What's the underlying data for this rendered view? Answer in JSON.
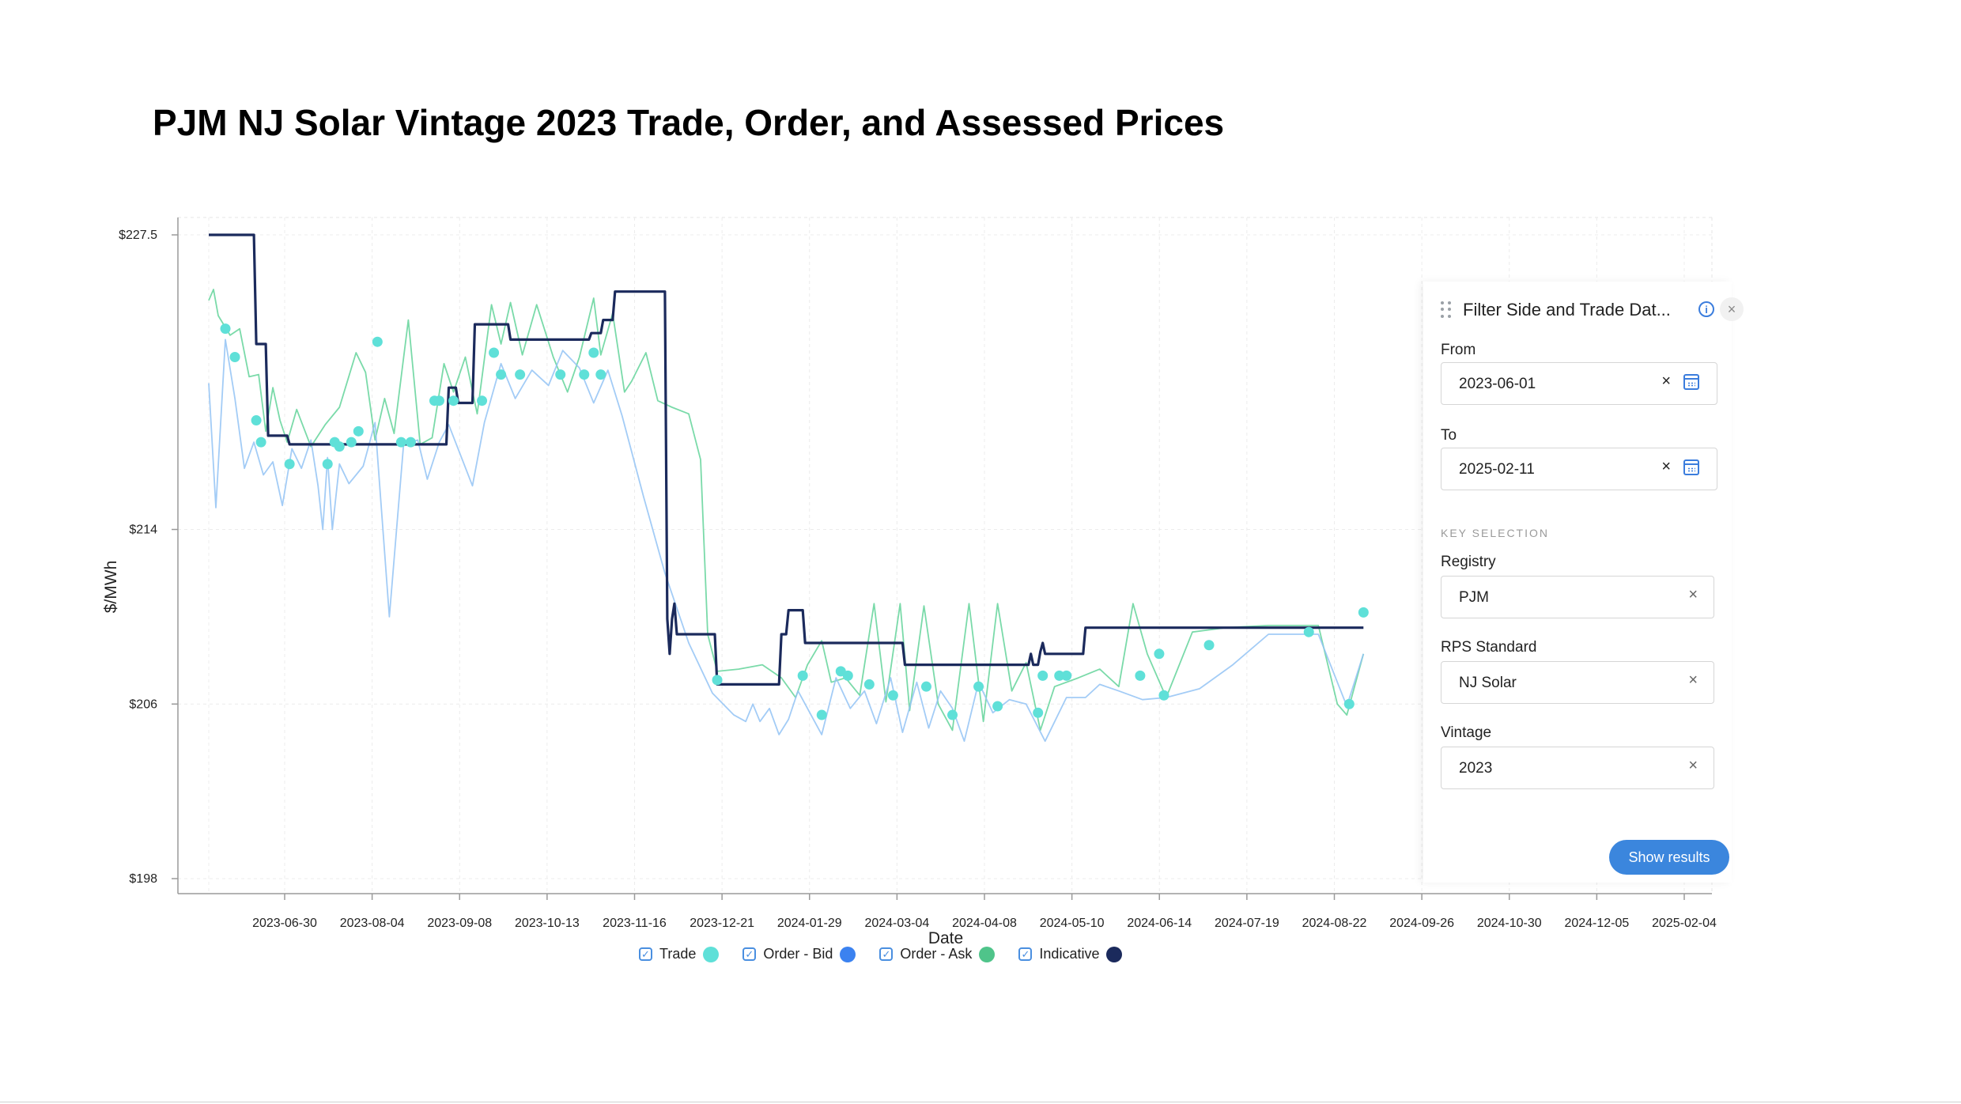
{
  "title": "PJM NJ Solar Vintage 2023 Trade, Order, and Assessed Prices",
  "chart_data": {
    "type": "line",
    "xlabel": "Date",
    "ylabel": "$/MWh",
    "ylim": [
      197.5,
      228.0
    ],
    "y_ticks": [
      {
        "value": 227.5,
        "label": "$227.5"
      },
      {
        "value": 214,
        "label": "$214"
      },
      {
        "value": 206,
        "label": "$206"
      },
      {
        "value": 198,
        "label": "$198"
      }
    ],
    "x_ticks": [
      "2023-06-30",
      "2023-08-04",
      "2023-09-08",
      "2023-10-13",
      "2023-11-16",
      "2023-12-21",
      "2024-01-29",
      "2024-03-04",
      "2024-04-08",
      "2024-05-10",
      "2024-06-14",
      "2024-07-19",
      "2024-08-22",
      "2024-09-26",
      "2024-10-30",
      "2024-12-05",
      "2025-02-04"
    ],
    "x_range": [
      "2023-06-01",
      "2025-02-11"
    ],
    "grid": true,
    "legend_position": "bottom",
    "series": [
      {
        "name": "Indicative",
        "color": "#1b2a5c",
        "style": "step",
        "points": [
          [
            "2023-06-01",
            227.5
          ],
          [
            "2023-06-20",
            227.5
          ],
          [
            "2023-06-21",
            222.5
          ],
          [
            "2023-06-25",
            222.5
          ],
          [
            "2023-06-26",
            218.3
          ],
          [
            "2023-07-04",
            218.3
          ],
          [
            "2023-07-05",
            217.9
          ],
          [
            "2023-09-09",
            217.9
          ],
          [
            "2023-09-10",
            220.5
          ],
          [
            "2023-09-13",
            220.5
          ],
          [
            "2023-09-14",
            219.8
          ],
          [
            "2023-09-20",
            219.8
          ],
          [
            "2023-09-21",
            223.4
          ],
          [
            "2023-10-05",
            223.4
          ],
          [
            "2023-10-06",
            222.7
          ],
          [
            "2023-11-08",
            222.7
          ],
          [
            "2023-11-09",
            223.0
          ],
          [
            "2023-11-13",
            223.0
          ],
          [
            "2023-11-14",
            223.6
          ],
          [
            "2023-11-18",
            223.6
          ],
          [
            "2023-11-19",
            224.9
          ],
          [
            "2023-12-10",
            224.9
          ],
          [
            "2023-12-11",
            209.9
          ],
          [
            "2023-12-12",
            208.3
          ],
          [
            "2023-12-13",
            209.9
          ],
          [
            "2023-12-14",
            210.6
          ],
          [
            "2023-12-15",
            209.2
          ],
          [
            "2023-12-31",
            209.2
          ],
          [
            "2024-01-01",
            206.9
          ],
          [
            "2024-01-27",
            206.9
          ],
          [
            "2024-01-28",
            209.2
          ],
          [
            "2024-01-30",
            209.2
          ],
          [
            "2024-01-31",
            210.3
          ],
          [
            "2024-02-06",
            210.3
          ],
          [
            "2024-02-07",
            208.8
          ],
          [
            "2024-03-19",
            208.8
          ],
          [
            "2024-03-20",
            207.8
          ],
          [
            "2024-05-11",
            207.8
          ],
          [
            "2024-05-12",
            208.3
          ],
          [
            "2024-05-13",
            207.8
          ],
          [
            "2024-05-15",
            207.8
          ],
          [
            "2024-05-16",
            208.4
          ],
          [
            "2024-05-17",
            208.8
          ],
          [
            "2024-05-18",
            208.3
          ],
          [
            "2024-06-03",
            208.3
          ],
          [
            "2024-06-04",
            209.5
          ],
          [
            "2024-09-29",
            209.5
          ]
        ]
      },
      {
        "name": "Order - Ask",
        "color": "#63d39a",
        "style": "line",
        "points": [
          [
            "2023-06-01",
            224.5
          ],
          [
            "2023-06-03",
            225.0
          ],
          [
            "2023-06-05",
            223.8
          ],
          [
            "2023-06-10",
            222.9
          ],
          [
            "2023-06-14",
            223.2
          ],
          [
            "2023-06-18",
            221.0
          ],
          [
            "2023-06-22",
            221.1
          ],
          [
            "2023-06-25",
            218.5
          ],
          [
            "2023-06-28",
            220.5
          ],
          [
            "2023-07-01",
            219.0
          ],
          [
            "2023-07-04",
            218.0
          ],
          [
            "2023-07-08",
            219.5
          ],
          [
            "2023-07-14",
            217.8
          ],
          [
            "2023-07-20",
            218.8
          ],
          [
            "2023-07-26",
            219.6
          ],
          [
            "2023-08-02",
            222.1
          ],
          [
            "2023-08-06",
            221.2
          ],
          [
            "2023-08-10",
            218.1
          ],
          [
            "2023-08-14",
            220.0
          ],
          [
            "2023-08-18",
            218.4
          ],
          [
            "2023-08-24",
            223.6
          ],
          [
            "2023-08-29",
            217.9
          ],
          [
            "2023-09-03",
            218.2
          ],
          [
            "2023-09-08",
            221.6
          ],
          [
            "2023-09-12",
            220.3
          ],
          [
            "2023-09-17",
            221.9
          ],
          [
            "2023-09-22",
            219.3
          ],
          [
            "2023-09-28",
            224.3
          ],
          [
            "2023-10-02",
            222.5
          ],
          [
            "2023-10-06",
            224.4
          ],
          [
            "2023-10-11",
            222.0
          ],
          [
            "2023-10-17",
            224.3
          ],
          [
            "2023-10-24",
            221.9
          ],
          [
            "2023-10-30",
            220.3
          ],
          [
            "2023-11-04",
            221.9
          ],
          [
            "2023-11-10",
            224.6
          ],
          [
            "2023-11-13",
            222.0
          ],
          [
            "2023-11-18",
            223.9
          ],
          [
            "2023-11-23",
            220.3
          ],
          [
            "2023-11-26",
            220.8
          ],
          [
            "2023-12-02",
            222.1
          ],
          [
            "2023-12-07",
            219.9
          ],
          [
            "2023-12-13",
            219.6
          ],
          [
            "2023-12-20",
            219.3
          ],
          [
            "2023-12-25",
            217.2
          ],
          [
            "2023-12-28",
            209.2
          ],
          [
            "2024-01-01",
            207.5
          ],
          [
            "2024-01-10",
            207.6
          ],
          [
            "2024-01-20",
            207.8
          ],
          [
            "2024-01-28",
            207.2
          ],
          [
            "2024-02-03",
            206.3
          ],
          [
            "2024-02-08",
            207.8
          ],
          [
            "2024-02-14",
            208.9
          ],
          [
            "2024-02-18",
            207.0
          ],
          [
            "2024-02-24",
            207.2
          ],
          [
            "2024-03-01",
            206.4
          ],
          [
            "2024-03-07",
            210.6
          ],
          [
            "2024-03-12",
            206.1
          ],
          [
            "2024-03-18",
            210.6
          ],
          [
            "2024-03-22",
            205.7
          ],
          [
            "2024-03-28",
            210.5
          ],
          [
            "2024-04-03",
            206.0
          ],
          [
            "2024-04-09",
            204.8
          ],
          [
            "2024-04-16",
            210.6
          ],
          [
            "2024-04-22",
            205.2
          ],
          [
            "2024-04-28",
            210.6
          ],
          [
            "2024-05-04",
            206.6
          ],
          [
            "2024-05-10",
            207.9
          ],
          [
            "2024-05-16",
            204.8
          ],
          [
            "2024-05-22",
            206.8
          ],
          [
            "2024-06-01",
            207.2
          ],
          [
            "2024-06-10",
            207.6
          ],
          [
            "2024-06-18",
            206.8
          ],
          [
            "2024-06-24",
            210.6
          ],
          [
            "2024-06-30",
            208.3
          ],
          [
            "2024-07-08",
            206.3
          ],
          [
            "2024-07-19",
            209.3
          ],
          [
            "2024-08-02",
            209.5
          ],
          [
            "2024-08-20",
            209.6
          ],
          [
            "2024-09-10",
            209.6
          ],
          [
            "2024-09-18",
            206.0
          ],
          [
            "2024-09-22",
            205.5
          ],
          [
            "2024-09-29",
            208.3
          ]
        ]
      },
      {
        "name": "Order - Bid",
        "color": "#93c3f5",
        "style": "line",
        "points": [
          [
            "2023-06-01",
            220.7
          ],
          [
            "2023-06-04",
            215.0
          ],
          [
            "2023-06-08",
            222.7
          ],
          [
            "2023-06-12",
            220.0
          ],
          [
            "2023-06-16",
            216.8
          ],
          [
            "2023-06-20",
            218.0
          ],
          [
            "2023-06-24",
            216.5
          ],
          [
            "2023-06-28",
            217.1
          ],
          [
            "2023-07-02",
            215.1
          ],
          [
            "2023-07-06",
            217.7
          ],
          [
            "2023-07-10",
            216.8
          ],
          [
            "2023-07-14",
            218.1
          ],
          [
            "2023-07-17",
            216.0
          ],
          [
            "2023-07-19",
            214.0
          ],
          [
            "2023-07-21",
            217.3
          ],
          [
            "2023-07-23",
            214.0
          ],
          [
            "2023-07-26",
            217.0
          ],
          [
            "2023-07-30",
            216.1
          ],
          [
            "2023-08-05",
            216.9
          ],
          [
            "2023-08-10",
            218.9
          ],
          [
            "2023-08-16",
            210.0
          ],
          [
            "2023-08-22",
            217.9
          ],
          [
            "2023-08-28",
            218.1
          ],
          [
            "2023-09-01",
            216.3
          ],
          [
            "2023-09-06",
            218.0
          ],
          [
            "2023-09-10",
            218.8
          ],
          [
            "2023-09-15",
            217.4
          ],
          [
            "2023-09-20",
            216.0
          ],
          [
            "2023-09-25",
            218.9
          ],
          [
            "2023-10-02",
            221.6
          ],
          [
            "2023-10-08",
            220.0
          ],
          [
            "2023-10-15",
            221.3
          ],
          [
            "2023-10-22",
            220.6
          ],
          [
            "2023-10-28",
            222.2
          ],
          [
            "2023-11-04",
            221.4
          ],
          [
            "2023-11-10",
            219.8
          ],
          [
            "2023-11-16",
            221.3
          ],
          [
            "2023-11-22",
            219.2
          ],
          [
            "2023-12-01",
            215.5
          ],
          [
            "2023-12-10",
            212.0
          ],
          [
            "2023-12-20",
            208.8
          ],
          [
            "2023-12-30",
            206.5
          ],
          [
            "2024-01-08",
            205.5
          ],
          [
            "2024-01-13",
            205.2
          ],
          [
            "2024-01-16",
            206.0
          ],
          [
            "2024-01-19",
            205.2
          ],
          [
            "2024-01-23",
            205.8
          ],
          [
            "2024-01-27",
            204.6
          ],
          [
            "2024-01-31",
            205.3
          ],
          [
            "2024-02-04",
            206.6
          ],
          [
            "2024-02-09",
            205.6
          ],
          [
            "2024-02-14",
            204.6
          ],
          [
            "2024-02-20",
            207.2
          ],
          [
            "2024-02-26",
            205.8
          ],
          [
            "2024-03-03",
            206.6
          ],
          [
            "2024-03-08",
            205.1
          ],
          [
            "2024-03-14",
            207.2
          ],
          [
            "2024-03-19",
            204.7
          ],
          [
            "2024-03-25",
            207.0
          ],
          [
            "2024-03-30",
            204.9
          ],
          [
            "2024-04-04",
            206.6
          ],
          [
            "2024-04-09",
            205.8
          ],
          [
            "2024-04-14",
            204.3
          ],
          [
            "2024-04-20",
            207.0
          ],
          [
            "2024-04-26",
            205.6
          ],
          [
            "2024-05-03",
            206.2
          ],
          [
            "2024-05-10",
            206.0
          ],
          [
            "2024-05-18",
            204.3
          ],
          [
            "2024-05-27",
            206.3
          ],
          [
            "2024-06-04",
            206.3
          ],
          [
            "2024-06-10",
            206.9
          ],
          [
            "2024-06-18",
            206.6
          ],
          [
            "2024-06-28",
            206.2
          ],
          [
            "2024-07-08",
            206.3
          ],
          [
            "2024-07-22",
            206.7
          ],
          [
            "2024-08-05",
            207.8
          ],
          [
            "2024-08-20",
            209.2
          ],
          [
            "2024-09-10",
            209.2
          ],
          [
            "2024-09-18",
            207.0
          ],
          [
            "2024-09-22",
            205.9
          ],
          [
            "2024-09-29",
            208.3
          ]
        ]
      },
      {
        "name": "Trade",
        "color": "#5fe0d8",
        "style": "points",
        "points": [
          [
            "2023-06-08",
            223.2
          ],
          [
            "2023-06-12",
            221.9
          ],
          [
            "2023-06-21",
            219.0
          ],
          [
            "2023-06-23",
            218.0
          ],
          [
            "2023-07-05",
            217.0
          ],
          [
            "2023-07-21",
            217.0
          ],
          [
            "2023-07-24",
            218.0
          ],
          [
            "2023-07-26",
            217.8
          ],
          [
            "2023-07-31",
            218.0
          ],
          [
            "2023-08-03",
            218.5
          ],
          [
            "2023-08-11",
            222.6
          ],
          [
            "2023-08-21",
            218.0
          ],
          [
            "2023-08-25",
            218.0
          ],
          [
            "2023-09-04",
            219.9
          ],
          [
            "2023-09-06",
            219.9
          ],
          [
            "2023-09-12",
            219.9
          ],
          [
            "2023-09-24",
            219.9
          ],
          [
            "2023-09-29",
            222.1
          ],
          [
            "2023-10-02",
            221.1
          ],
          [
            "2023-10-10",
            221.1
          ],
          [
            "2023-10-27",
            221.1
          ],
          [
            "2023-11-06",
            221.1
          ],
          [
            "2023-11-10",
            222.1
          ],
          [
            "2023-11-13",
            221.1
          ],
          [
            "2024-01-01",
            207.1
          ],
          [
            "2024-02-06",
            207.3
          ],
          [
            "2024-02-14",
            205.5
          ],
          [
            "2024-02-22",
            207.5
          ],
          [
            "2024-02-25",
            207.3
          ],
          [
            "2024-03-05",
            206.9
          ],
          [
            "2024-03-15",
            206.4
          ],
          [
            "2024-03-29",
            206.8
          ],
          [
            "2024-04-09",
            205.5
          ],
          [
            "2024-04-20",
            206.8
          ],
          [
            "2024-04-28",
            205.9
          ],
          [
            "2024-05-15",
            205.6
          ],
          [
            "2024-05-17",
            207.3
          ],
          [
            "2024-05-24",
            207.3
          ],
          [
            "2024-05-27",
            207.3
          ],
          [
            "2024-06-27",
            207.3
          ],
          [
            "2024-07-05",
            208.3
          ],
          [
            "2024-07-07",
            206.4
          ],
          [
            "2024-07-26",
            208.7
          ],
          [
            "2024-09-06",
            209.3
          ],
          [
            "2024-09-23",
            206.0
          ],
          [
            "2024-09-29",
            210.2
          ]
        ]
      }
    ]
  },
  "legend": [
    {
      "label": "Trade",
      "color": "#5fe0d8"
    },
    {
      "label": "Order - Bid",
      "color": "#3b82f0"
    },
    {
      "label": "Order - Ask",
      "color": "#4fc48a"
    },
    {
      "label": "Indicative",
      "color": "#1b2a5c"
    }
  ],
  "filter_panel": {
    "title": "Filter Side and Trade Dat...",
    "from_label": "From",
    "from_value": "2023-06-01",
    "to_label": "To",
    "to_value": "2025-02-11",
    "section_label": "KEY SELECTION",
    "registry_label": "Registry",
    "registry_value": "PJM",
    "rps_label": "RPS Standard",
    "rps_value": "NJ Solar",
    "vintage_label": "Vintage",
    "vintage_value": "2023",
    "show_results_label": "Show results"
  }
}
